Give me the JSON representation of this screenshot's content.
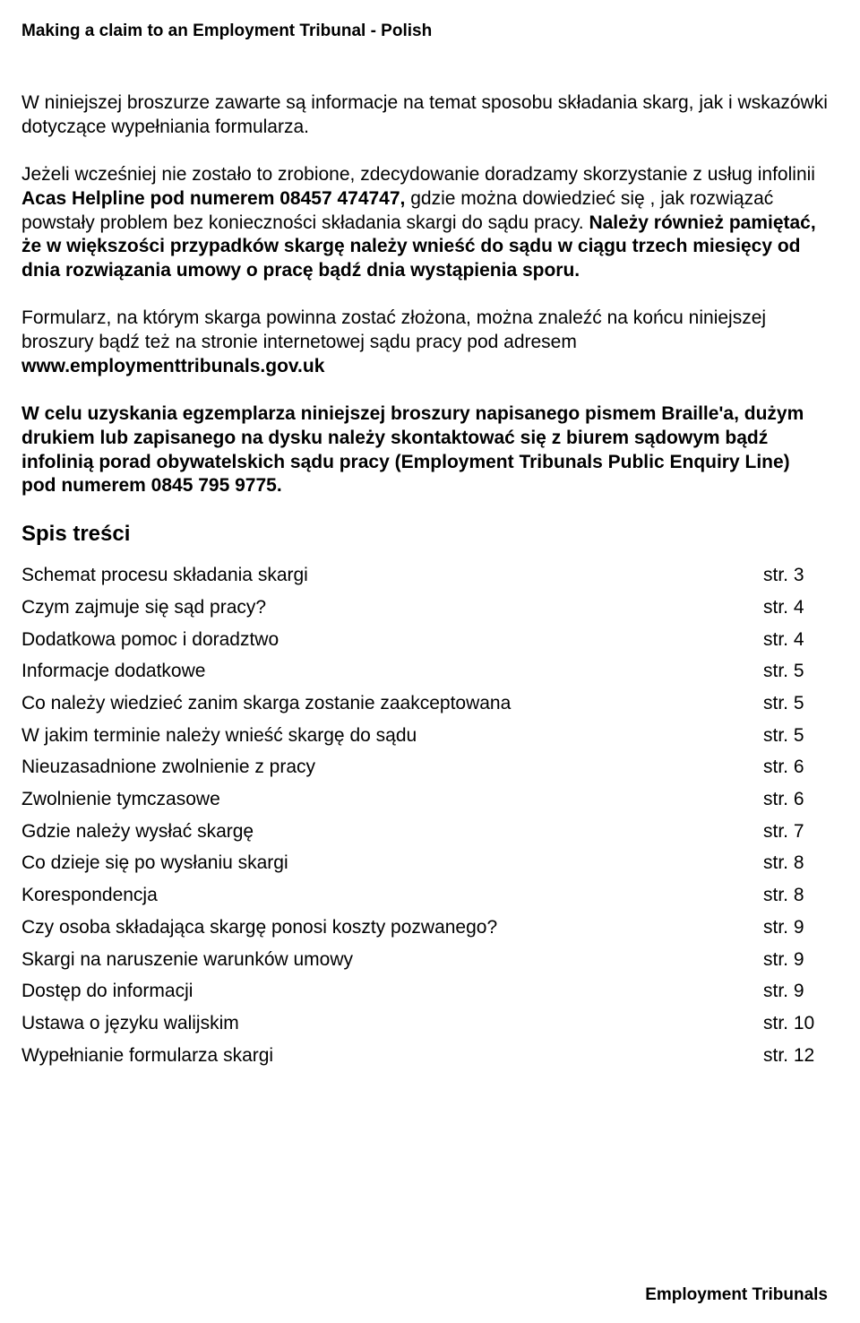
{
  "header": {
    "title": "Making a claim to an Employment Tribunal - Polish"
  },
  "paragraphs": {
    "p1": "W niniejszej broszurze zawarte są informacje na temat sposobu składania skarg,  jak i wskazówki dotyczące  wypełniania formularza.",
    "p2_part1": "Jeżeli wcześniej nie zostało to zrobione, zdecydowanie doradzamy skorzystanie z usług infolinii ",
    "p2_bold1": "Acas Helpline pod numerem 08457 474747,",
    "p2_part2": " gdzie można dowiedzieć się , jak rozwiązać powstały problem bez konieczności składania skargi do sądu pracy. ",
    "p2_bold2": "Należy również pamiętać, że w większości przypadków skargę należy wnieść do sądu w ciągu trzech miesięcy od dnia rozwiązania umowy o pracę bądź dnia wystąpienia sporu.",
    "p3_part1": "Formularz, na którym skarga powinna zostać złożona, można znaleźć na końcu niniejszej broszury bądź też na stronie internetowej sądu pracy pod adresem ",
    "p3_bold": "www.employmenttribunals.gov.uk",
    "p4_bold": "W celu uzyskania egzemplarza niniejszej broszury napisanego pismem Braille'a, dużym drukiem lub zapisanego na dysku należy skontaktować się z biurem sądowym bądź infolinią porad obywatelskich sądu pracy (Employment Tribunals Public Enquiry Line) pod numerem 0845 795 9775."
  },
  "toc_heading": "Spis treści",
  "toc": [
    {
      "title": "Schemat procesu składania skargi",
      "page": "str. 3"
    },
    {
      "title": "Czym zajmuje się sąd pracy?",
      "page": "str. 4"
    },
    {
      "title": "Dodatkowa pomoc i doradztwo",
      "page": "str. 4"
    },
    {
      "title": "Informacje dodatkowe",
      "page": "str. 5"
    },
    {
      "title": "Co należy wiedzieć zanim skarga zostanie zaakceptowana",
      "page": "str. 5"
    },
    {
      "title": "W jakim terminie należy wnieść skargę do sądu",
      "page": "str. 5"
    },
    {
      "title": "Nieuzasadnione zwolnienie z pracy",
      "page": "str. 6"
    },
    {
      "title": "Zwolnienie tymczasowe",
      "page": "str. 6"
    },
    {
      "title": "Gdzie należy wysłać skargę",
      "page": "str. 7"
    },
    {
      "title": "Co dzieje się po wysłaniu skargi",
      "page": "str. 8"
    },
    {
      "title": "Korespondencja",
      "page": "str. 8"
    },
    {
      "title": "Czy osoba składająca skargę ponosi koszty pozwanego?",
      "page": "str. 9"
    },
    {
      "title": "Skargi na naruszenie warunków umowy",
      "page": "str. 9"
    },
    {
      "title": "Dostęp do informacji",
      "page": "str. 9"
    },
    {
      "title": "Ustawa o języku walijskim",
      "page": "str. 10"
    },
    {
      "title": "Wypełnianie formularza skargi",
      "page": "str. 12"
    }
  ],
  "footer": "Employment Tribunals"
}
